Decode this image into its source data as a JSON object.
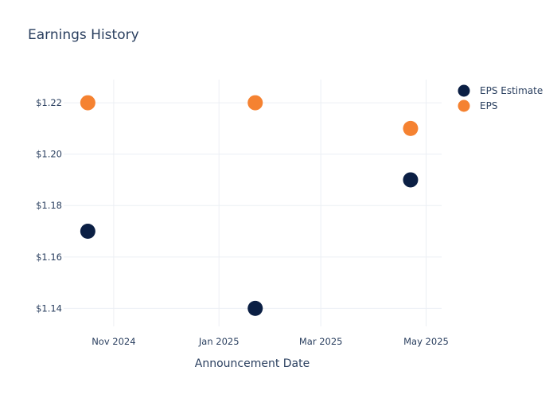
{
  "chart_data": {
    "type": "scatter",
    "title": "Earnings History",
    "xlabel": "Announcement Date",
    "ylabel": "",
    "x_ticks": [
      "Nov 2024",
      "Jan 2025",
      "Mar 2025",
      "May 2025"
    ],
    "y_ticks": [
      "$1.14",
      "$1.16",
      "$1.18",
      "$1.20",
      "$1.22"
    ],
    "ylim": [
      1.133,
      1.229
    ],
    "xlim": [
      "2024-10-03",
      "2025-05-10"
    ],
    "grid": true,
    "legend_position": "top-right",
    "series": [
      {
        "name": "EPS Estimate",
        "color": "#0b1f44",
        "points": [
          {
            "x": "2024-10-17",
            "y": 1.17
          },
          {
            "x": "2025-01-22",
            "y": 1.14
          },
          {
            "x": "2025-04-22",
            "y": 1.19
          }
        ]
      },
      {
        "name": "EPS",
        "color": "#f58231",
        "points": [
          {
            "x": "2024-10-17",
            "y": 1.22
          },
          {
            "x": "2025-01-22",
            "y": 1.22
          },
          {
            "x": "2025-04-22",
            "y": 1.21
          }
        ]
      }
    ]
  }
}
